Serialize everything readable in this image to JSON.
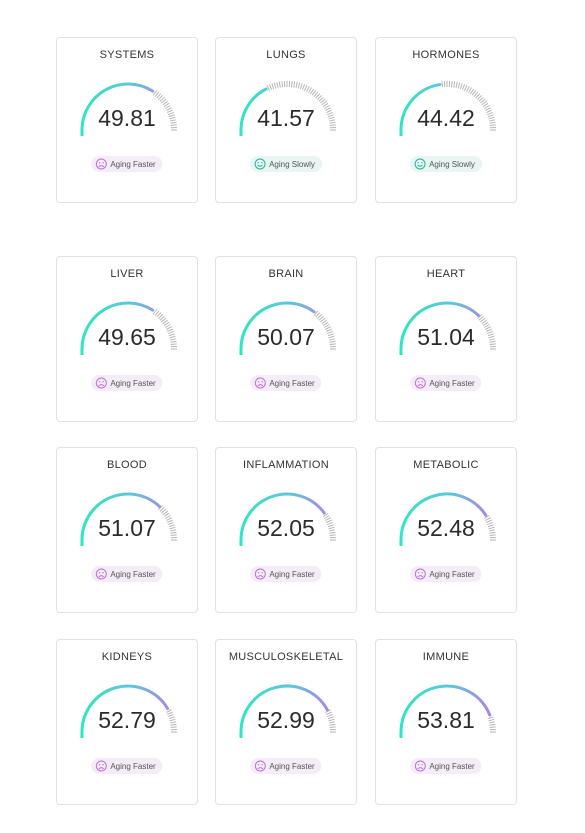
{
  "colors": {
    "gauge_start": "#2ee6c2",
    "gauge_mid": "#60c4dc",
    "gauge_end": "#b37fe0",
    "track_ticks": "#b5b5b5",
    "faster_icon": "#c46fd6",
    "slowly_icon": "#1fb59a"
  },
  "statuses": {
    "faster": {
      "label": "Aging Faster",
      "icon": "frown-face-icon"
    },
    "slowly": {
      "label": "Aging Slowly",
      "icon": "smile-face-icon"
    }
  },
  "cards": [
    {
      "title": "SYSTEMS",
      "value": "49.81",
      "fill": 0.68,
      "status": "faster"
    },
    {
      "title": "LUNGS",
      "value": "41.57",
      "fill": 0.35,
      "status": "slowly"
    },
    {
      "title": "HORMONES",
      "value": "44.42",
      "fill": 0.45,
      "status": "slowly"
    },
    {
      "title": "LIVER",
      "value": "49.65",
      "fill": 0.68,
      "status": "faster"
    },
    {
      "title": "BRAIN",
      "value": "50.07",
      "fill": 0.7,
      "status": "faster"
    },
    {
      "title": "HEART",
      "value": "51.04",
      "fill": 0.74,
      "status": "faster"
    },
    {
      "title": "BLOOD",
      "value": "51.07",
      "fill": 0.74,
      "status": "faster"
    },
    {
      "title": "INFLAMMATION",
      "value": "52.05",
      "fill": 0.8,
      "status": "faster"
    },
    {
      "title": "METABOLIC",
      "value": "52.48",
      "fill": 0.82,
      "status": "faster"
    },
    {
      "title": "KIDNEYS",
      "value": "52.79",
      "fill": 0.83,
      "status": "faster"
    },
    {
      "title": "MUSCULOSKELETAL",
      "value": "52.99",
      "fill": 0.84,
      "status": "faster"
    },
    {
      "title": "IMMUNE",
      "value": "53.81",
      "fill": 0.88,
      "status": "faster"
    }
  ]
}
